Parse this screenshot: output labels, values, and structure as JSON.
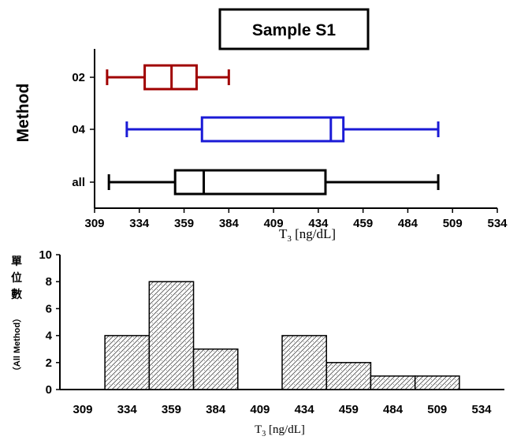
{
  "chart_data": [
    {
      "type": "boxplot",
      "title": "Sample S1",
      "ylabel": "Method",
      "xlabel_main": "T",
      "xlabel_sub": "3",
      "xlabel_rest": " [ng/dL]",
      "xlim": [
        309,
        534
      ],
      "xticks": [
        309,
        334,
        359,
        384,
        409,
        434,
        459,
        484,
        509,
        534
      ],
      "categories": [
        "02",
        "04",
        "all"
      ],
      "boxes": [
        {
          "category": "02",
          "color": "#a00000",
          "whisker_low": 316,
          "q1": 337,
          "median": 352,
          "q3": 366,
          "whisker_high": 384
        },
        {
          "category": "04",
          "color": "#1a1ad6",
          "whisker_low": 327,
          "q1": 369,
          "median": 441,
          "q3": 448,
          "whisker_high": 501
        },
        {
          "category": "all",
          "color": "#000000",
          "whisker_low": 317,
          "q1": 354,
          "median": 370,
          "q3": 438,
          "whisker_high": 501
        }
      ]
    },
    {
      "type": "histogram",
      "ylabel_chars": [
        "單",
        "位",
        "數"
      ],
      "ylabel_paren": "（All Method）",
      "xlabel_main": "T",
      "xlabel_sub": "3",
      "xlabel_rest": " [ng/dL]",
      "ylim": [
        0,
        10
      ],
      "yticks": [
        0,
        2,
        4,
        6,
        8,
        10
      ],
      "xticks": [
        309,
        334,
        359,
        384,
        409,
        434,
        459,
        484,
        509,
        534
      ],
      "bins": [
        {
          "x0": 334,
          "x1": 359,
          "count": 4
        },
        {
          "x0": 359,
          "x1": 384,
          "count": 8
        },
        {
          "x0": 384,
          "x1": 409,
          "count": 3
        },
        {
          "x0": 434,
          "x1": 459,
          "count": 4
        },
        {
          "x0": 459,
          "x1": 484,
          "count": 2
        },
        {
          "x0": 484,
          "x1": 509,
          "count": 1
        },
        {
          "x0": 509,
          "x1": 534,
          "count": 1
        }
      ]
    }
  ]
}
